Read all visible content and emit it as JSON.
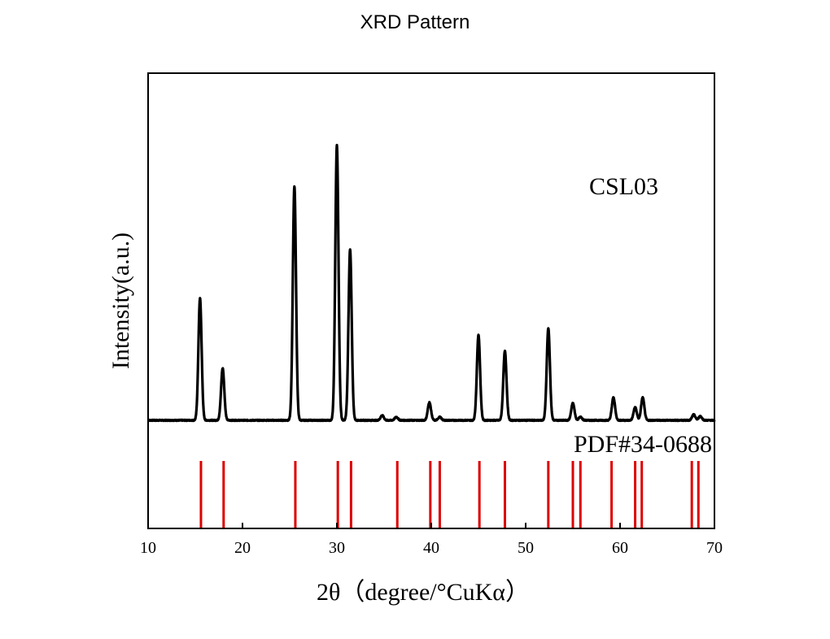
{
  "chart_data": {
    "type": "line",
    "title": "XRD Pattern",
    "xlabel": "2θ（degree/°CuKα）",
    "ylabel": "Intensity(a.u.)",
    "xlim": [
      10,
      70
    ],
    "xticks": [
      10,
      20,
      30,
      40,
      50,
      60,
      70
    ],
    "yticks_shown": false,
    "grid": false,
    "sample_label": "CSL03",
    "series": [
      {
        "color": "#000000",
        "baseline": 3,
        "noise": 0.6,
        "peak_width": 0.17,
        "peaks": [
          {
            "x": 15.5,
            "y": 150
          },
          {
            "x": 17.9,
            "y": 64
          },
          {
            "x": 25.5,
            "y": 288
          },
          {
            "x": 30.0,
            "y": 338
          },
          {
            "x": 31.4,
            "y": 210
          },
          {
            "x": 34.8,
            "y": 6
          },
          {
            "x": 36.3,
            "y": 4
          },
          {
            "x": 39.8,
            "y": 22
          },
          {
            "x": 40.9,
            "y": 4
          },
          {
            "x": 45.0,
            "y": 105
          },
          {
            "x": 47.8,
            "y": 85
          },
          {
            "x": 52.4,
            "y": 113
          },
          {
            "x": 55.0,
            "y": 21
          },
          {
            "x": 55.8,
            "y": 4
          },
          {
            "x": 59.3,
            "y": 28
          },
          {
            "x": 61.6,
            "y": 16
          },
          {
            "x": 62.4,
            "y": 28
          },
          {
            "x": 67.8,
            "y": 7
          },
          {
            "x": 68.5,
            "y": 5
          }
        ]
      }
    ],
    "reference": {
      "name": "PDF#34-0688",
      "color": "#dd0000",
      "lines": [
        15.6,
        18.0,
        25.6,
        30.1,
        31.5,
        36.4,
        39.9,
        40.9,
        45.1,
        47.8,
        52.4,
        55.0,
        55.8,
        59.1,
        61.6,
        62.3,
        67.6,
        68.3
      ]
    }
  }
}
